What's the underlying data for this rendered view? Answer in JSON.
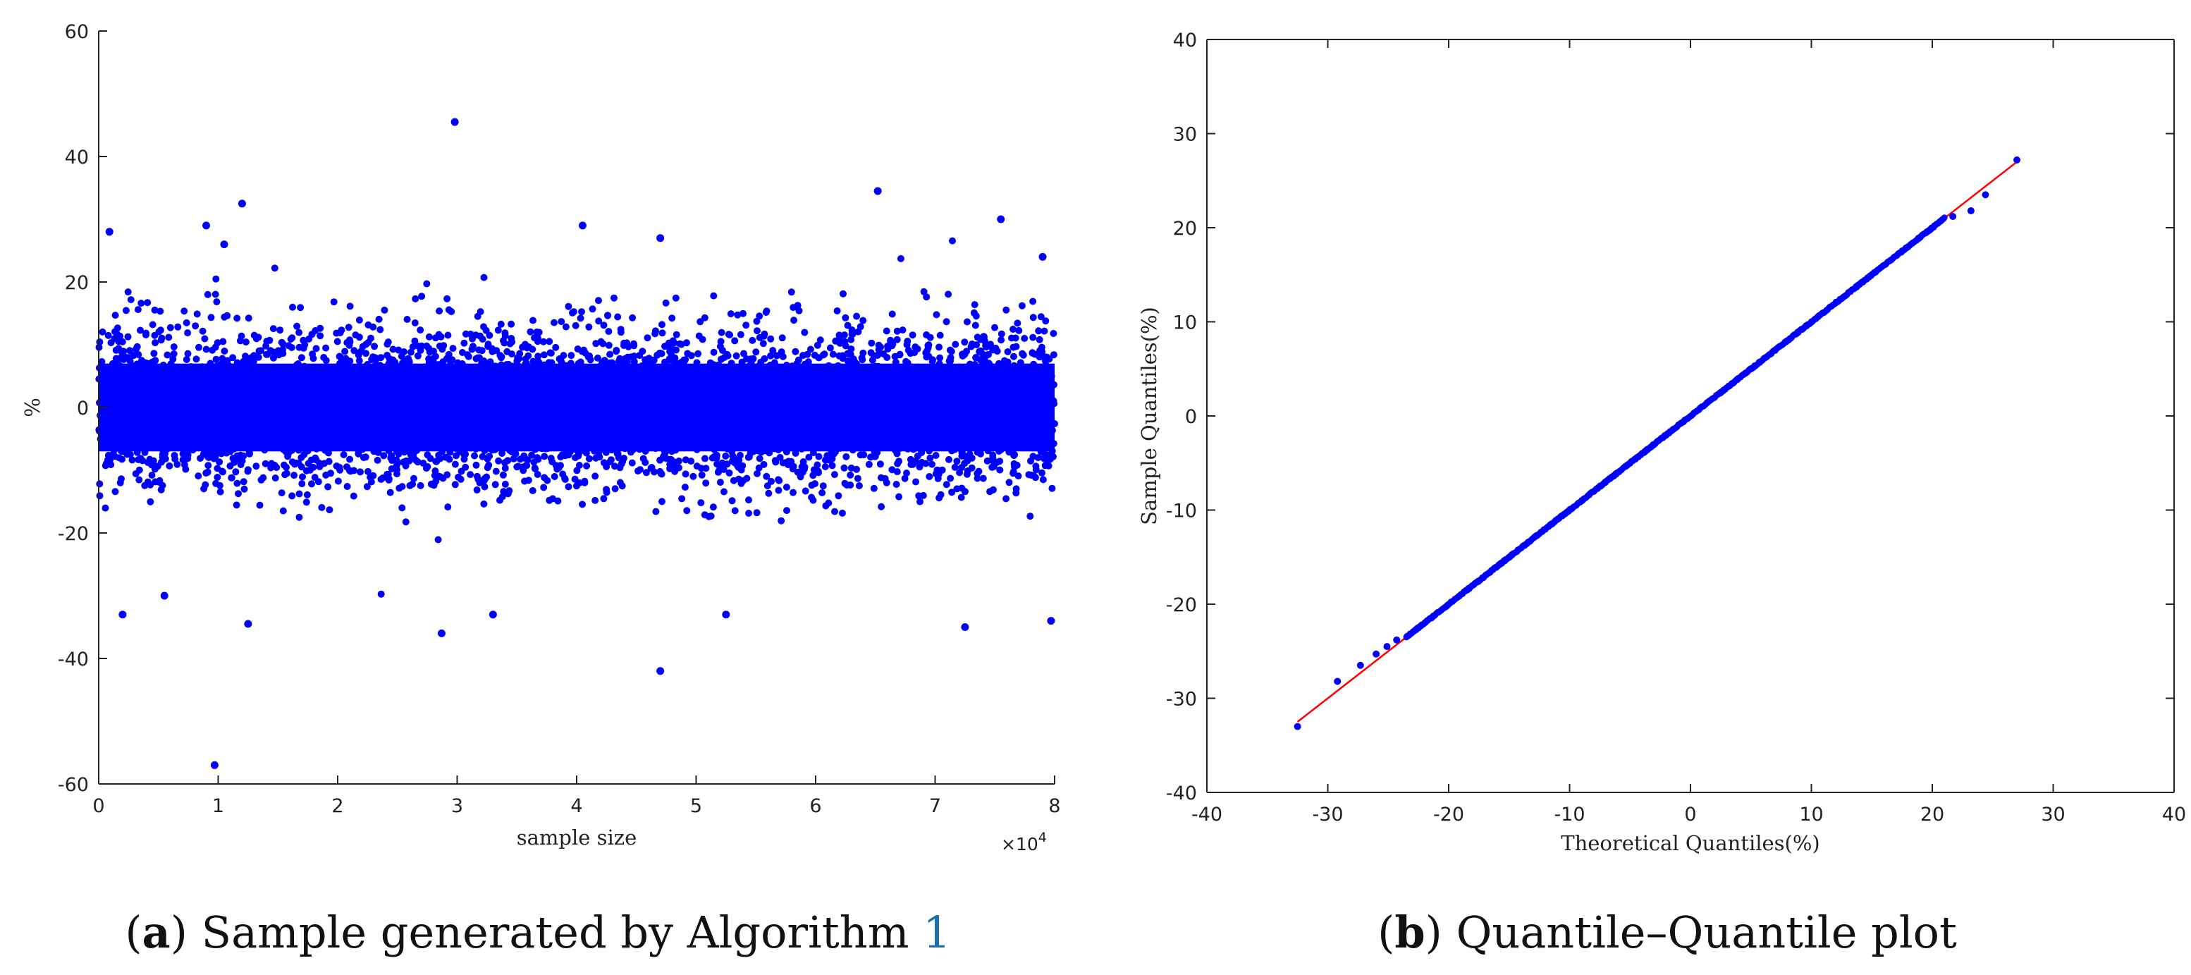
{
  "panels": [
    {
      "caption": {
        "open": "(",
        "letter": "a",
        "close": ")",
        "text": " Sample generated by Algorithm ",
        "link": "1",
        "link_color": "#1f6fa8"
      }
    },
    {
      "caption": {
        "open": "(",
        "letter": "b",
        "close": ")",
        "text": " Quantile–Quantile plot",
        "link": "",
        "link_color": "#1f6fa8"
      }
    }
  ],
  "chart_data": [
    {
      "type": "scatter",
      "title": "",
      "xlabel": "sample size",
      "ylabel": "%",
      "x_multiplier": "×10",
      "x_multiplier_exp": "4",
      "xlim": [
        0,
        8
      ],
      "ylim": [
        -60,
        60
      ],
      "x_ticks": [
        0,
        1,
        2,
        3,
        4,
        5,
        6,
        7,
        8
      ],
      "y_ticks": [
        -60,
        -40,
        -20,
        0,
        20,
        40,
        60
      ],
      "grid": false,
      "marker_color": "#0000ff",
      "n_points": 80000,
      "dense_band": "most points between about -10 and 10 percent",
      "outliers": [
        {
          "x": 0.09,
          "y": 28
        },
        {
          "x": 0.2,
          "y": -33
        },
        {
          "x": 0.55,
          "y": -30
        },
        {
          "x": 0.9,
          "y": 29
        },
        {
          "x": 0.97,
          "y": -57
        },
        {
          "x": 1.05,
          "y": 26
        },
        {
          "x": 1.2,
          "y": 32.5
        },
        {
          "x": 1.25,
          "y": -34.5
        },
        {
          "x": 2.87,
          "y": -36
        },
        {
          "x": 2.98,
          "y": 45.5
        },
        {
          "x": 3.3,
          "y": -33
        },
        {
          "x": 4.05,
          "y": 29
        },
        {
          "x": 4.7,
          "y": 27
        },
        {
          "x": 4.7,
          "y": -42
        },
        {
          "x": 5.25,
          "y": -33
        },
        {
          "x": 6.52,
          "y": 34.5
        },
        {
          "x": 7.25,
          "y": -35
        },
        {
          "x": 7.55,
          "y": 30
        },
        {
          "x": 7.97,
          "y": -34
        },
        {
          "x": 7.9,
          "y": 24
        }
      ]
    },
    {
      "type": "scatter",
      "title": "",
      "xlabel": "Theoretical Quantiles(%)",
      "ylabel": "Sample Quantiles(%)",
      "xlim": [
        -40,
        40
      ],
      "ylim": [
        -40,
        40
      ],
      "x_ticks": [
        -40,
        -30,
        -20,
        -10,
        0,
        10,
        20,
        30,
        40
      ],
      "y_ticks": [
        -40,
        -30,
        -20,
        -10,
        0,
        10,
        20,
        30,
        40
      ],
      "grid": false,
      "marker_color": "#0000ff",
      "reference_line": {
        "x": [
          -32.5,
          27
        ],
        "y": [
          -32.5,
          27
        ],
        "color": "#ff0000"
      },
      "tail_points": [
        {
          "x": -32.5,
          "y": -33
        },
        {
          "x": -29.2,
          "y": -28.2
        },
        {
          "x": -27.3,
          "y": -26.5
        },
        {
          "x": -26,
          "y": -25.3
        },
        {
          "x": -25.1,
          "y": -24.5
        },
        {
          "x": -24.3,
          "y": -23.8
        },
        {
          "x": 21.7,
          "y": 21.2
        },
        {
          "x": 23.2,
          "y": 21.8
        },
        {
          "x": 24.4,
          "y": 23.5
        },
        {
          "x": 27,
          "y": 27.2
        }
      ],
      "body_range": [
        -23.5,
        21
      ]
    }
  ]
}
